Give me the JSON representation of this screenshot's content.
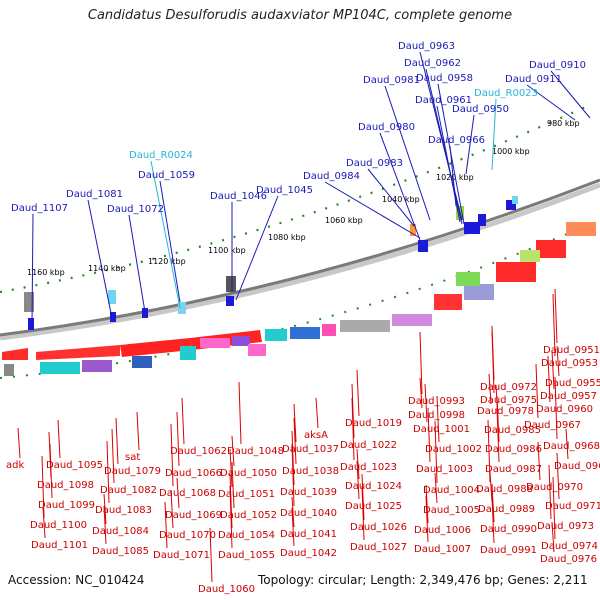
{
  "title": "Candidatus Desulforudis audaxviator MP104C, complete genome",
  "accession": "Accession: NC_010424",
  "topology": "Topology: circular; Length: 2,349,476 bp; Genes: 2,211",
  "colors": {
    "forward_label": "#1a1ab8",
    "rna_label": "#26b6d6",
    "reverse_label": "#cc0000",
    "backbone": "#808080",
    "ticks": "#228b22"
  },
  "ticks": [
    "980 kbp",
    "1000 kbp",
    "1020 kbp",
    "1040 kbp",
    "1060 kbp",
    "1080 kbp",
    "1100 kbp",
    "1120 kbp",
    "1140 kbp",
    "1160 kbp"
  ],
  "top_labels": [
    "Daud_0910",
    "Daud_0911",
    "Daud_R0023",
    "Daud_0950",
    "Daud_0958",
    "Daud_0961",
    "Daud_0963",
    "Daud_0962",
    "Daud_0966",
    "Daud_0981",
    "Daud_0980",
    "Daud_0983",
    "Daud_0984",
    "Daud_1045",
    "Daud_1046",
    "Daud_1059",
    "Daud_R0024",
    "Daud_1072",
    "Daud_1081",
    "Daud_1107"
  ],
  "bottom_labels": [
    "adk",
    "Daud_1095",
    "Daud_1098",
    "Daud_1099",
    "Daud_1100",
    "Daud_1101",
    "sat",
    "Daud_1079",
    "Daud_1082",
    "Daud_1083",
    "Daud_1084",
    "Daud_1085",
    "Daud_1062",
    "Daud_1066",
    "Daud_1068",
    "Daud_1069",
    "Daud_1070",
    "Daud_1071",
    "Daud_1060",
    "Daud_1048",
    "Daud_1050",
    "Daud_1051",
    "Daud_1052",
    "Daud_1054",
    "Daud_1055",
    "aksA",
    "Daud_1037",
    "Daud_1038",
    "Daud_1039",
    "Daud_1040",
    "Daud_1041",
    "Daud_1042",
    "Daud_1019",
    "Daud_1022",
    "Daud_1023",
    "Daud_1024",
    "Daud_1025",
    "Daud_1026",
    "Daud_1027",
    "Daud_0993",
    "Daud_0998",
    "Daud_1001",
    "Daud_1002",
    "Daud_1003",
    "Daud_1004",
    "Daud_1005",
    "Daud_1006",
    "Daud_1007",
    "Daud_0972",
    "Daud_0975",
    "Daud_0978",
    "Daud_0985",
    "Daud_0986",
    "Daud_0987",
    "Daud_0988",
    "Daud_0989",
    "Daud_0990",
    "Daud_0991",
    "Daud_0951",
    "Daud_0953",
    "Daud_0955",
    "Daud_0957",
    "Daud_0960",
    "Daud_0967",
    "Daud_0968",
    "Daud_0969",
    "Daud_0970",
    "Daud_0971",
    "Daud_0973",
    "Daud_0974",
    "Daud_0976"
  ]
}
